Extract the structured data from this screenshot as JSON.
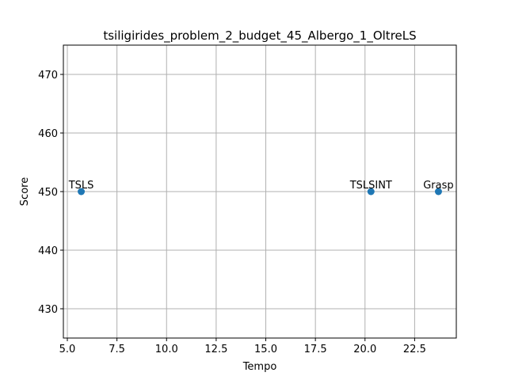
{
  "chart_data": {
    "type": "scatter",
    "title": "tsiligirides_problem_2_budget_45_Albergo_1_OltreLS",
    "xlabel": "Tempo",
    "ylabel": "Score",
    "xlim": [
      4.8,
      24.6
    ],
    "ylim": [
      425,
      475
    ],
    "xticks": [
      5.0,
      7.5,
      10.0,
      12.5,
      15.0,
      17.5,
      20.0,
      22.5
    ],
    "xtick_labels": [
      "5.0",
      "7.5",
      "10.0",
      "12.5",
      "15.0",
      "17.5",
      "20.0",
      "22.5"
    ],
    "yticks": [
      430,
      440,
      450,
      460,
      470
    ],
    "ytick_labels": [
      "430",
      "440",
      "450",
      "460",
      "470"
    ],
    "grid": true,
    "marker_color": "#1f77b4",
    "points": [
      {
        "label": "TSLS",
        "x": 5.7,
        "y": 450
      },
      {
        "label": "TSLSINT",
        "x": 20.3,
        "y": 450
      },
      {
        "label": "Grasp",
        "x": 23.7,
        "y": 450
      }
    ]
  }
}
